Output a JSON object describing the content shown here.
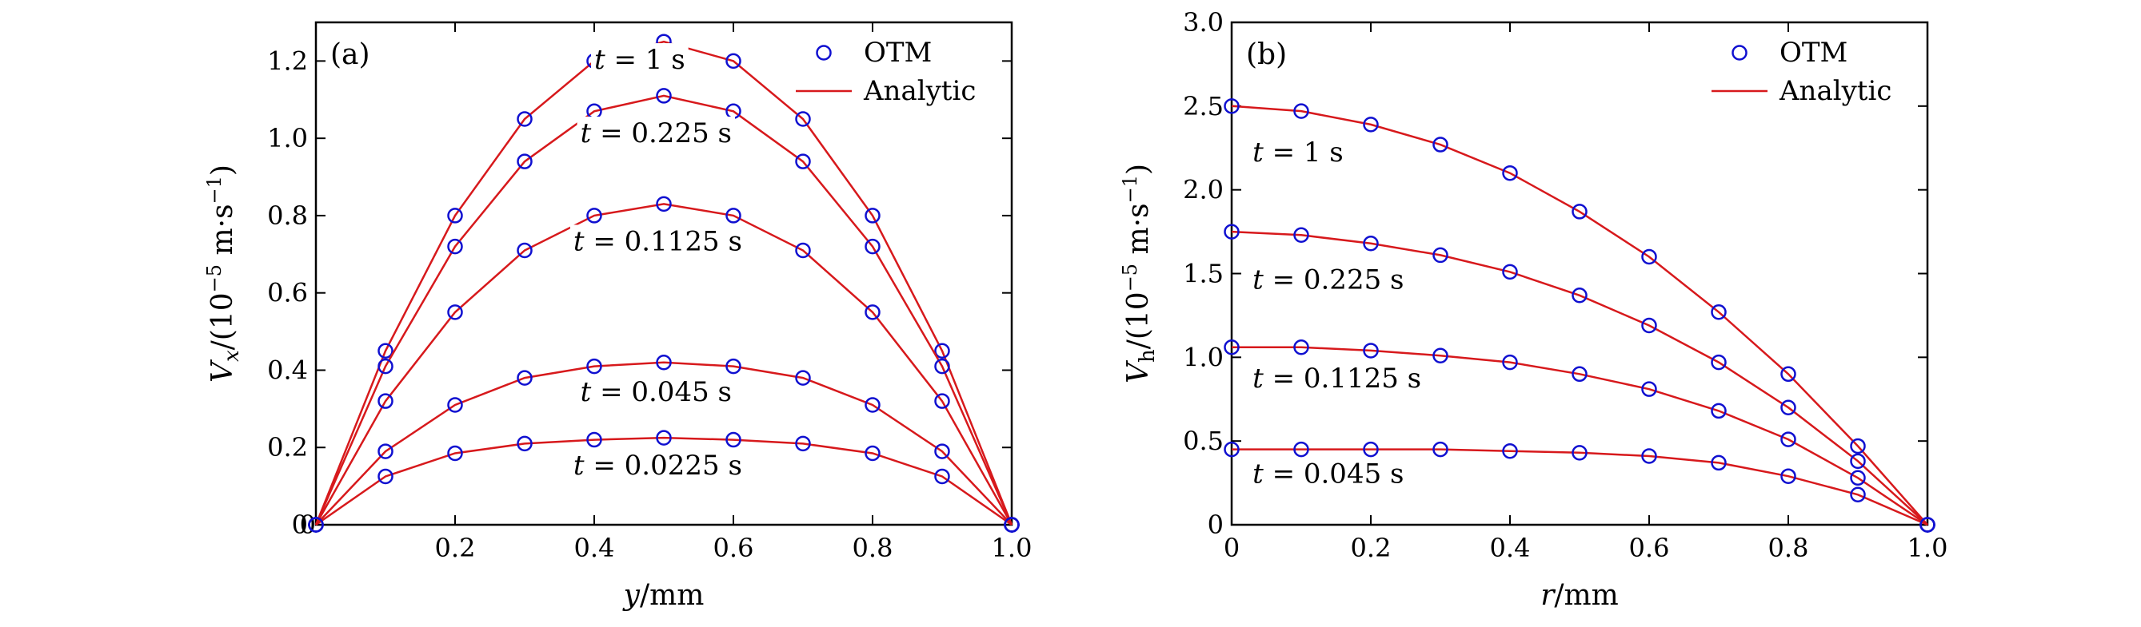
{
  "chart_data": [
    {
      "type": "line",
      "panel_label": "(a)",
      "xlabel": "y/mm",
      "xlabel_var": "y",
      "xlabel_unit": "/mm",
      "ylabel": "V_x/(10^-5 m·s^-1)",
      "ylabel_var": "V",
      "ylabel_sub": "x",
      "ylabel_unit_pre": "/(10",
      "ylabel_exp": "−5",
      "ylabel_unit_mid": " m·s",
      "ylabel_exp2": "−1",
      "ylabel_unit_post": ")",
      "xlim": [
        0,
        1.0
      ],
      "ylim": [
        0,
        1.3
      ],
      "xticks": [
        0.2,
        0.4,
        0.6,
        0.8,
        1.0
      ],
      "xtick_labels": [
        "0.2",
        "0.4",
        "0.6",
        "0.8",
        "1.0"
      ],
      "yticks": [
        0,
        0.2,
        0.4,
        0.6,
        0.8,
        1.0,
        1.2
      ],
      "ytick_labels": [
        "0",
        "0.2",
        "0.4",
        "0.6",
        "0.8",
        "1.0",
        "1.2"
      ],
      "extra_x_label": "0",
      "legend": {
        "position": "top-right",
        "markers_label": "OTM",
        "line_label": "Analytic"
      },
      "x": [
        0,
        0.1,
        0.2,
        0.3,
        0.4,
        0.5,
        0.6,
        0.7,
        0.8,
        0.9,
        1.0
      ],
      "series": [
        {
          "name": "t = 1 s",
          "values": [
            0,
            0.45,
            0.8,
            1.05,
            1.2,
            1.25,
            1.2,
            1.05,
            0.8,
            0.45,
            0
          ],
          "label_x": 0.4,
          "label_y": 1.18
        },
        {
          "name": "t = 0.225 s",
          "values": [
            0,
            0.41,
            0.72,
            0.94,
            1.07,
            1.11,
            1.07,
            0.94,
            0.72,
            0.41,
            0
          ],
          "label_x": 0.38,
          "label_y": 0.99
        },
        {
          "name": "t = 0.1125 s",
          "values": [
            0,
            0.32,
            0.55,
            0.71,
            0.8,
            0.83,
            0.8,
            0.71,
            0.55,
            0.32,
            0
          ],
          "label_x": 0.37,
          "label_y": 0.71
        },
        {
          "name": "t = 0.045 s",
          "values": [
            0,
            0.19,
            0.31,
            0.38,
            0.41,
            0.42,
            0.41,
            0.38,
            0.31,
            0.19,
            0
          ],
          "label_x": 0.38,
          "label_y": 0.32
        },
        {
          "name": "t = 0.0225 s",
          "values": [
            0,
            0.125,
            0.185,
            0.21,
            0.22,
            0.225,
            0.22,
            0.21,
            0.185,
            0.125,
            0
          ],
          "label_x": 0.37,
          "label_y": 0.13
        }
      ]
    },
    {
      "type": "line",
      "panel_label": "(b)",
      "xlabel": "r/mm",
      "xlabel_var": "r",
      "xlabel_unit": "/mm",
      "ylabel": "V_h/(10^-5 m·s^-1)",
      "ylabel_var": "V",
      "ylabel_sub": "h",
      "ylabel_unit_pre": "/(10",
      "ylabel_exp": "−5",
      "ylabel_unit_mid": " m·s",
      "ylabel_exp2": "−1",
      "ylabel_unit_post": ")",
      "xlim": [
        0,
        1.0
      ],
      "ylim": [
        0,
        3.0
      ],
      "xticks": [
        0,
        0.2,
        0.4,
        0.6,
        0.8,
        1.0
      ],
      "xtick_labels": [
        "0",
        "0.2",
        "0.4",
        "0.6",
        "0.8",
        "1.0"
      ],
      "yticks": [
        0,
        0.5,
        1.0,
        1.5,
        2.0,
        2.5,
        3.0
      ],
      "ytick_labels": [
        "0",
        "0.5",
        "1.0",
        "1.5",
        "2.0",
        "2.5",
        "3.0"
      ],
      "legend": {
        "position": "top-right",
        "markers_label": "OTM",
        "line_label": "Analytic"
      },
      "x": [
        0,
        0.1,
        0.2,
        0.3,
        0.4,
        0.5,
        0.6,
        0.7,
        0.8,
        0.9,
        1.0
      ],
      "series": [
        {
          "name": "t = 1 s",
          "values": [
            2.5,
            2.47,
            2.39,
            2.27,
            2.1,
            1.87,
            1.6,
            1.27,
            0.9,
            0.47,
            0
          ],
          "label_x": 0.03,
          "label_y": 2.17
        },
        {
          "name": "t = 0.225 s",
          "values": [
            1.75,
            1.73,
            1.68,
            1.61,
            1.51,
            1.37,
            1.19,
            0.97,
            0.7,
            0.38,
            0
          ],
          "label_x": 0.03,
          "label_y": 1.41
        },
        {
          "name": "t = 0.1125 s",
          "values": [
            1.06,
            1.06,
            1.04,
            1.01,
            0.97,
            0.9,
            0.81,
            0.68,
            0.51,
            0.28,
            0
          ],
          "label_x": 0.03,
          "label_y": 0.82
        },
        {
          "name": "t = 0.045 s",
          "values": [
            0.45,
            0.45,
            0.45,
            0.45,
            0.44,
            0.43,
            0.41,
            0.37,
            0.29,
            0.18,
            0
          ],
          "label_x": 0.03,
          "label_y": 0.25
        }
      ]
    }
  ]
}
